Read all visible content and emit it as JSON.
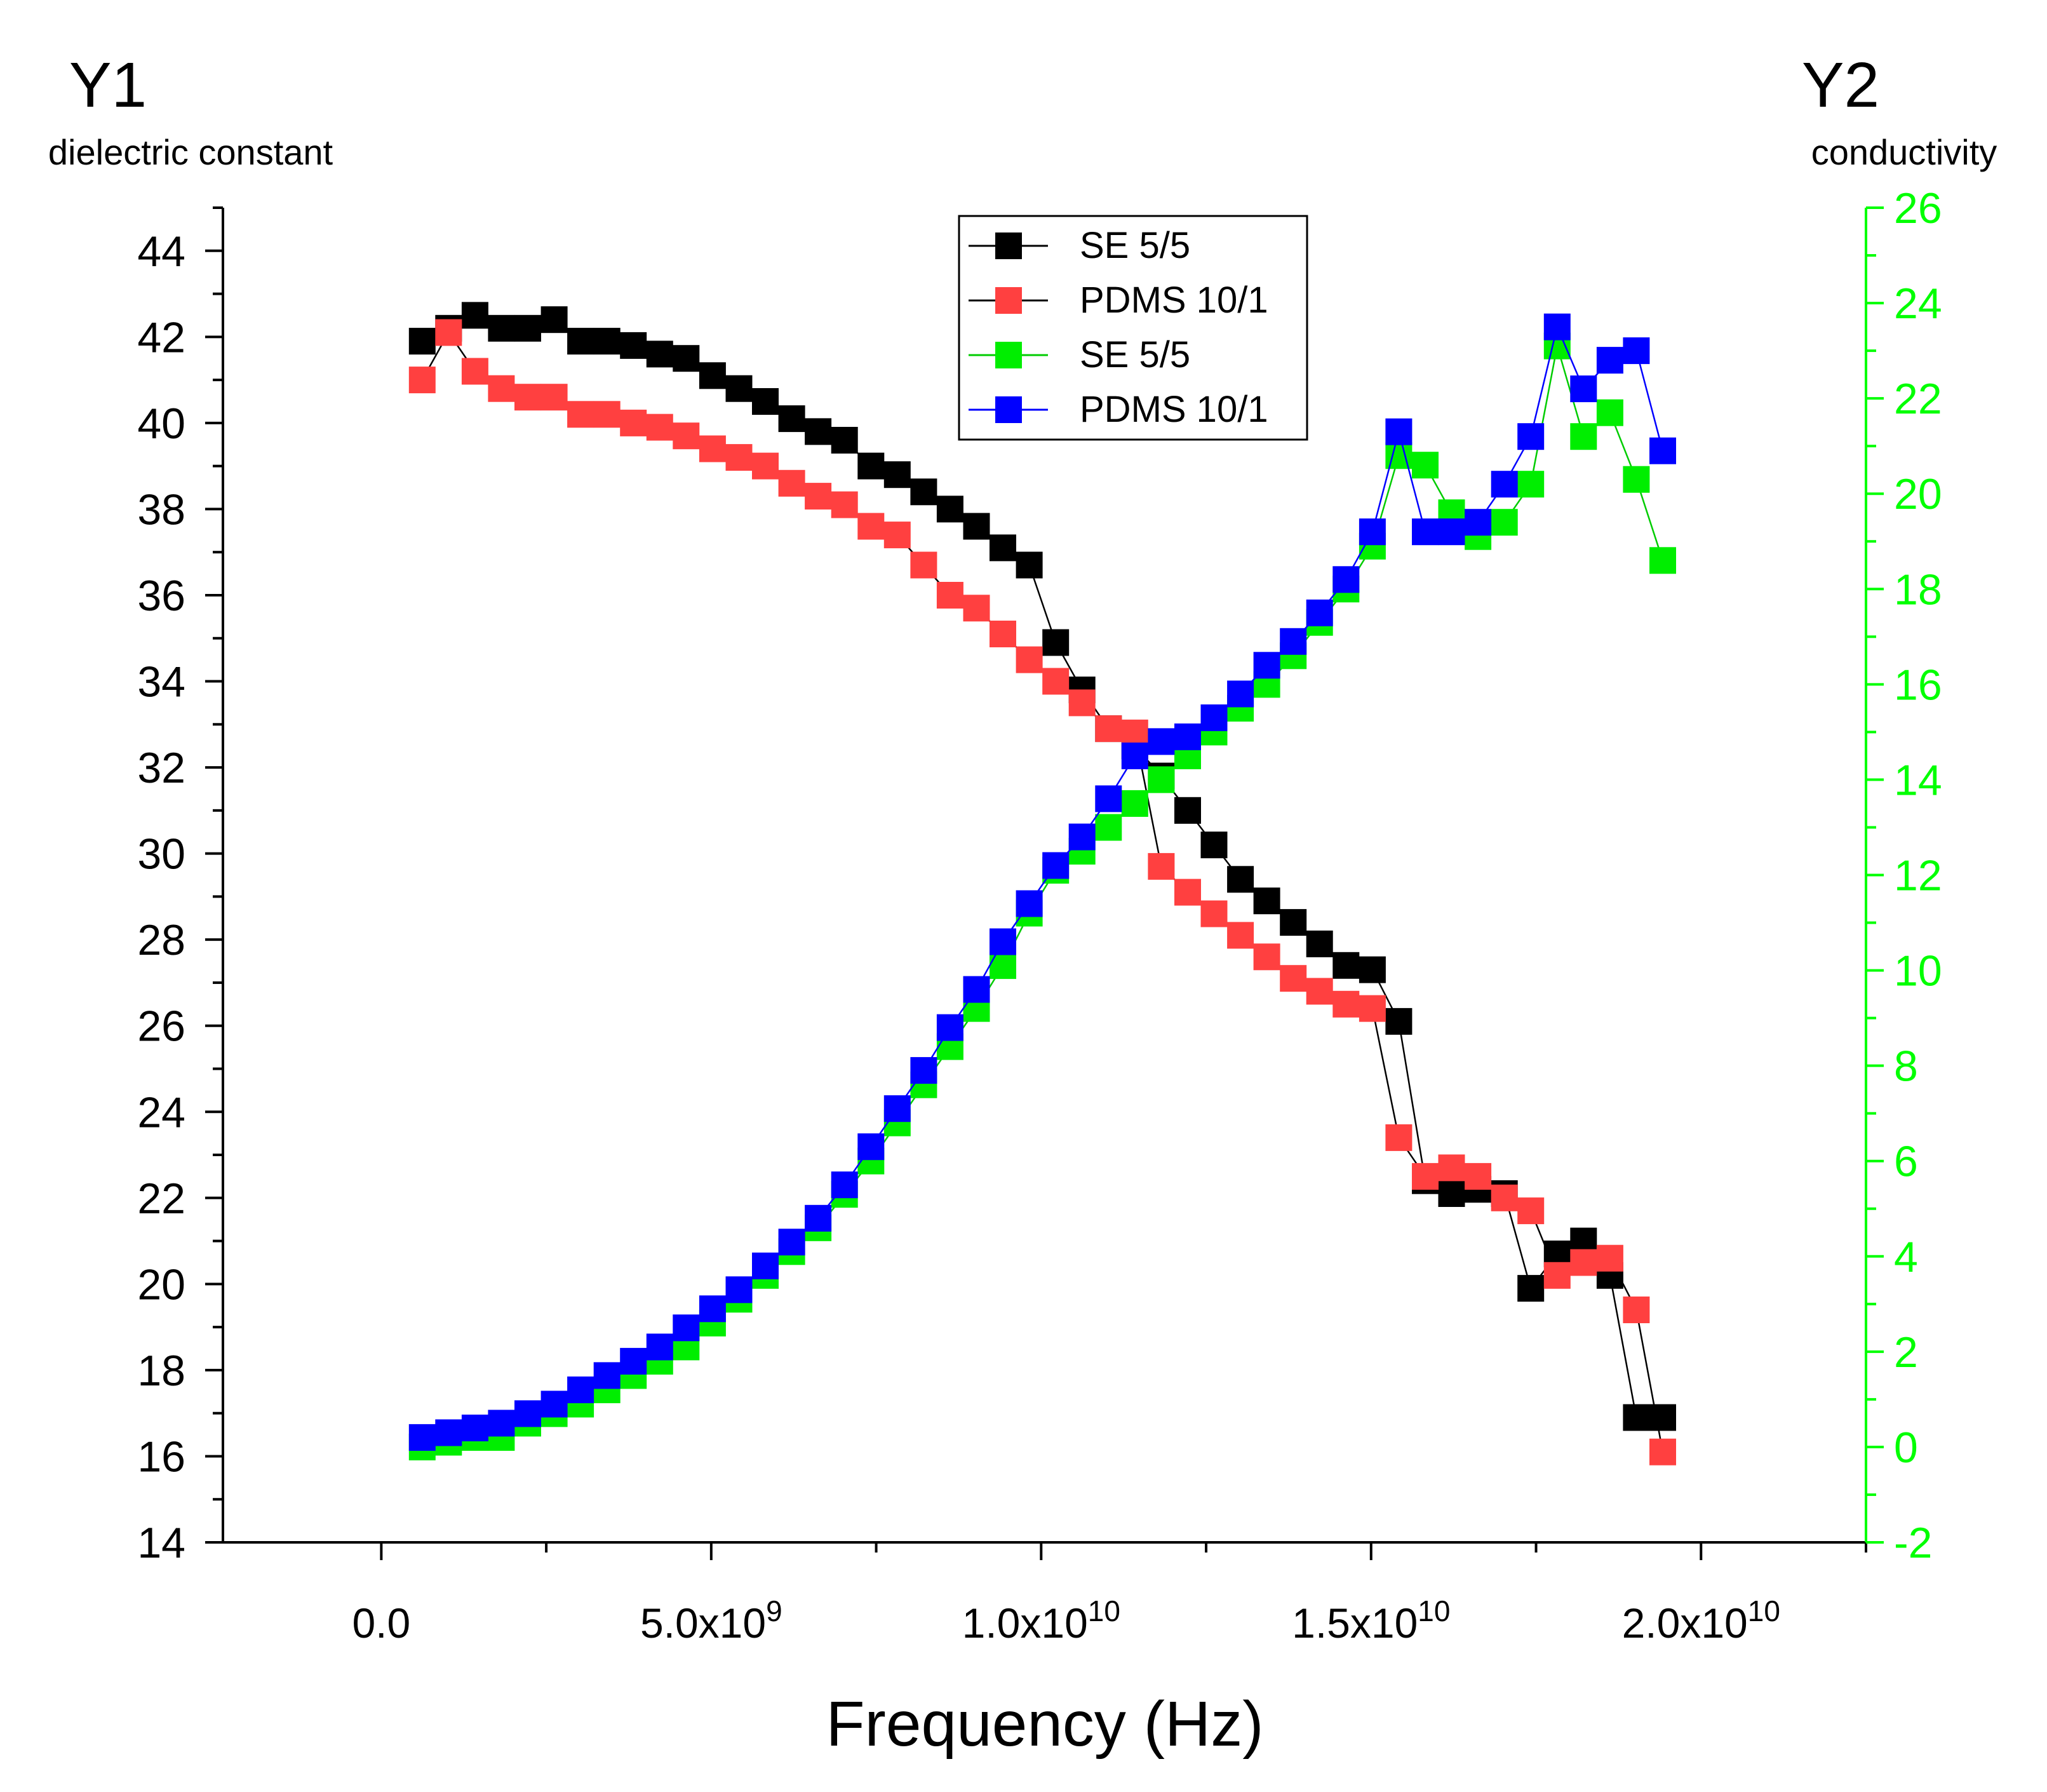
{
  "chart_data": {
    "type": "scatter",
    "xlabel": "Frequency (Hz)",
    "y1_label": "Y1",
    "y1_sublabel": "dielectric constant",
    "y2_label": "Y2",
    "y2_sublabel": "conductivity",
    "xlim": [
      -2400000000.0,
      22500000000.0
    ],
    "y1lim": [
      14,
      45
    ],
    "y2lim": [
      -2,
      26
    ],
    "x_ticks": [
      {
        "v": 0,
        "base": "0.0",
        "exp": ""
      },
      {
        "v": 5000000000.0,
        "base": "5.0x10",
        "exp": "9"
      },
      {
        "v": 10000000000.0,
        "base": "1.0x10",
        "exp": "10"
      },
      {
        "v": 15000000000.0,
        "base": "1.5x10",
        "exp": "10"
      },
      {
        "v": 20000000000.0,
        "base": "2.0x10",
        "exp": "10"
      }
    ],
    "y1_ticks": [
      "14",
      "16",
      "18",
      "20",
      "22",
      "24",
      "26",
      "28",
      "30",
      "32",
      "34",
      "36",
      "38",
      "40",
      "42",
      "44"
    ],
    "y2_ticks": [
      "-2",
      "0",
      "2",
      "4",
      "6",
      "8",
      "10",
      "12",
      "14",
      "16",
      "18",
      "20",
      "22",
      "24",
      "26"
    ],
    "colors": {
      "axis": "#000000",
      "y2_axis": "#00ff00"
    },
    "x": [
      620000000.0,
      1020000000.0,
      1420000000.0,
      1820000000.0,
      2220000000.0,
      2620000000.0,
      3020000000.0,
      3420000000.0,
      3820000000.0,
      4220000000.0,
      4620000000.0,
      5020000000.0,
      5420000000.0,
      5820000000.0,
      6220000000.0,
      6620000000.0,
      7020000000.0,
      7420000000.0,
      7820000000.0,
      8220000000.0,
      8620000000.0,
      9020000000.0,
      9420000000.0,
      9820000000.0,
      10220000000.0,
      10620000000.0,
      11020000000.0,
      11420000000.0,
      11820000000.0,
      12220000000.0,
      12620000000.0,
      13020000000.0,
      13420000000.0,
      13820000000.0,
      14220000000.0,
      14620000000.0,
      15020000000.0,
      15420000000.0,
      15820000000.0,
      16220000000.0,
      16620000000.0,
      17020000000.0,
      17420000000.0,
      17820000000.0,
      18220000000.0,
      18620000000.0,
      19020000000.0,
      19420000000.0
    ],
    "series": [
      {
        "name": "SE 5/5",
        "axis": "y1",
        "color": "#000000",
        "line_color": "#000000",
        "values": [
          41.9,
          42.2,
          42.5,
          42.2,
          42.2,
          42.4,
          41.9,
          41.9,
          41.8,
          41.6,
          41.5,
          41.1,
          40.8,
          40.5,
          40.1,
          39.8,
          39.6,
          39.0,
          38.8,
          38.4,
          38.0,
          37.6,
          37.1,
          36.7,
          34.9,
          33.8,
          32.9,
          32.5,
          31.8,
          31.0,
          30.2,
          29.4,
          28.9,
          28.4,
          27.9,
          27.4,
          27.3,
          26.1,
          22.4,
          22.1,
          22.2,
          22.1,
          19.9,
          20.7,
          21.0,
          20.2,
          16.9,
          16.9
        ]
      },
      {
        "name": "PDMS 10/1",
        "axis": "y1",
        "color": "#ff4040",
        "line_color": "#000000",
        "values": [
          41.0,
          42.1,
          41.2,
          40.8,
          40.6,
          40.6,
          40.2,
          40.2,
          40.0,
          39.9,
          39.7,
          39.4,
          39.2,
          39.0,
          38.6,
          38.3,
          38.1,
          37.6,
          37.4,
          36.7,
          36.0,
          35.7,
          35.1,
          34.5,
          34.0,
          33.5,
          32.9,
          32.8,
          29.7,
          29.1,
          28.6,
          28.1,
          27.6,
          27.1,
          26.8,
          26.5,
          26.4,
          23.4,
          22.5,
          22.7,
          22.5,
          22.0,
          21.7,
          20.2,
          20.5,
          20.6,
          19.4,
          16.1
        ]
      },
      {
        "name": "SE 5/5",
        "axis": "y2",
        "color": "#00ee00",
        "line_color": "#00cc00",
        "values": [
          0.0,
          0.1,
          0.2,
          0.2,
          0.5,
          0.7,
          0.9,
          1.2,
          1.5,
          1.8,
          2.1,
          2.6,
          3.1,
          3.6,
          4.1,
          4.6,
          5.3,
          6.0,
          6.8,
          7.6,
          8.4,
          9.2,
          10.1,
          11.2,
          12.1,
          12.5,
          13.0,
          13.5,
          14.0,
          14.5,
          15.0,
          15.5,
          16.0,
          16.6,
          17.3,
          18.0,
          18.9,
          20.8,
          20.6,
          19.6,
          19.1,
          19.4,
          20.2,
          23.1,
          21.2,
          21.7,
          20.3,
          18.6
        ]
      },
      {
        "name": "PDMS 10/1",
        "axis": "y2",
        "color": "#0000ff",
        "line_color": "#0000ff",
        "values": [
          0.2,
          0.3,
          0.4,
          0.5,
          0.7,
          0.9,
          1.2,
          1.5,
          1.8,
          2.1,
          2.5,
          2.9,
          3.3,
          3.8,
          4.3,
          4.8,
          5.5,
          6.3,
          7.1,
          7.9,
          8.8,
          9.6,
          10.6,
          11.4,
          12.2,
          12.8,
          13.6,
          14.5,
          14.8,
          14.9,
          15.3,
          15.8,
          16.4,
          16.9,
          17.5,
          18.2,
          19.2,
          21.3,
          19.2,
          19.2,
          19.4,
          20.2,
          21.2,
          23.5,
          22.2,
          22.8,
          23.0,
          20.9
        ]
      }
    ]
  }
}
